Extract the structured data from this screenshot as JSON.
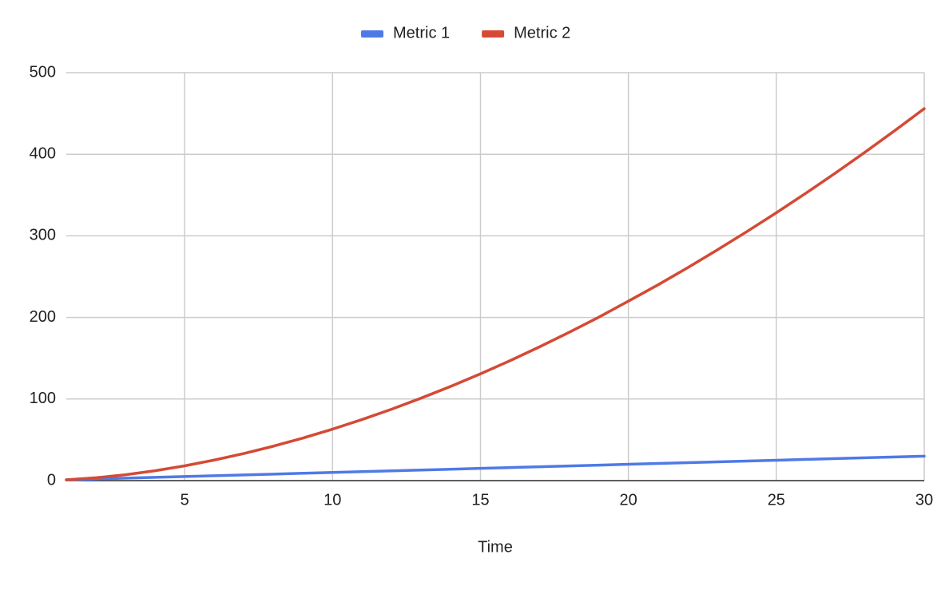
{
  "chart_data": {
    "type": "line",
    "x_label": "Time",
    "x": [
      1,
      2,
      3,
      4,
      5,
      6,
      7,
      8,
      9,
      10,
      11,
      12,
      13,
      14,
      15,
      16,
      17,
      18,
      19,
      20,
      21,
      22,
      23,
      24,
      25,
      26,
      27,
      28,
      29,
      30
    ],
    "series": [
      {
        "name": "Metric 1",
        "color": "#4f7ae6",
        "values": [
          1,
          2,
          3,
          4,
          5,
          6,
          7,
          8,
          9,
          10,
          11,
          12,
          13,
          14,
          15,
          16,
          17,
          18,
          19,
          20,
          21,
          22,
          23,
          24,
          25,
          26,
          27,
          28,
          29,
          30
        ]
      },
      {
        "name": "Metric 2",
        "color": "#d44a35",
        "values": [
          1,
          3.5,
          7.2,
          12.1,
          18.1,
          25.2,
          33.2,
          42.2,
          52.2,
          63.1,
          74.9,
          87.6,
          101.2,
          115.6,
          130.9,
          147,
          164,
          181.8,
          200.3,
          220,
          239.9,
          260.9,
          282.6,
          305.1,
          328.3,
          352.3,
          377,
          402.6,
          428.9,
          455.9
        ]
      }
    ],
    "xlim": [
      1,
      30
    ],
    "xticks": [
      5,
      10,
      15,
      20,
      25,
      30
    ],
    "ylim": [
      0,
      500
    ],
    "yticks": [
      0,
      100,
      200,
      300,
      400,
      500
    ],
    "grid": true,
    "legend": "top"
  }
}
